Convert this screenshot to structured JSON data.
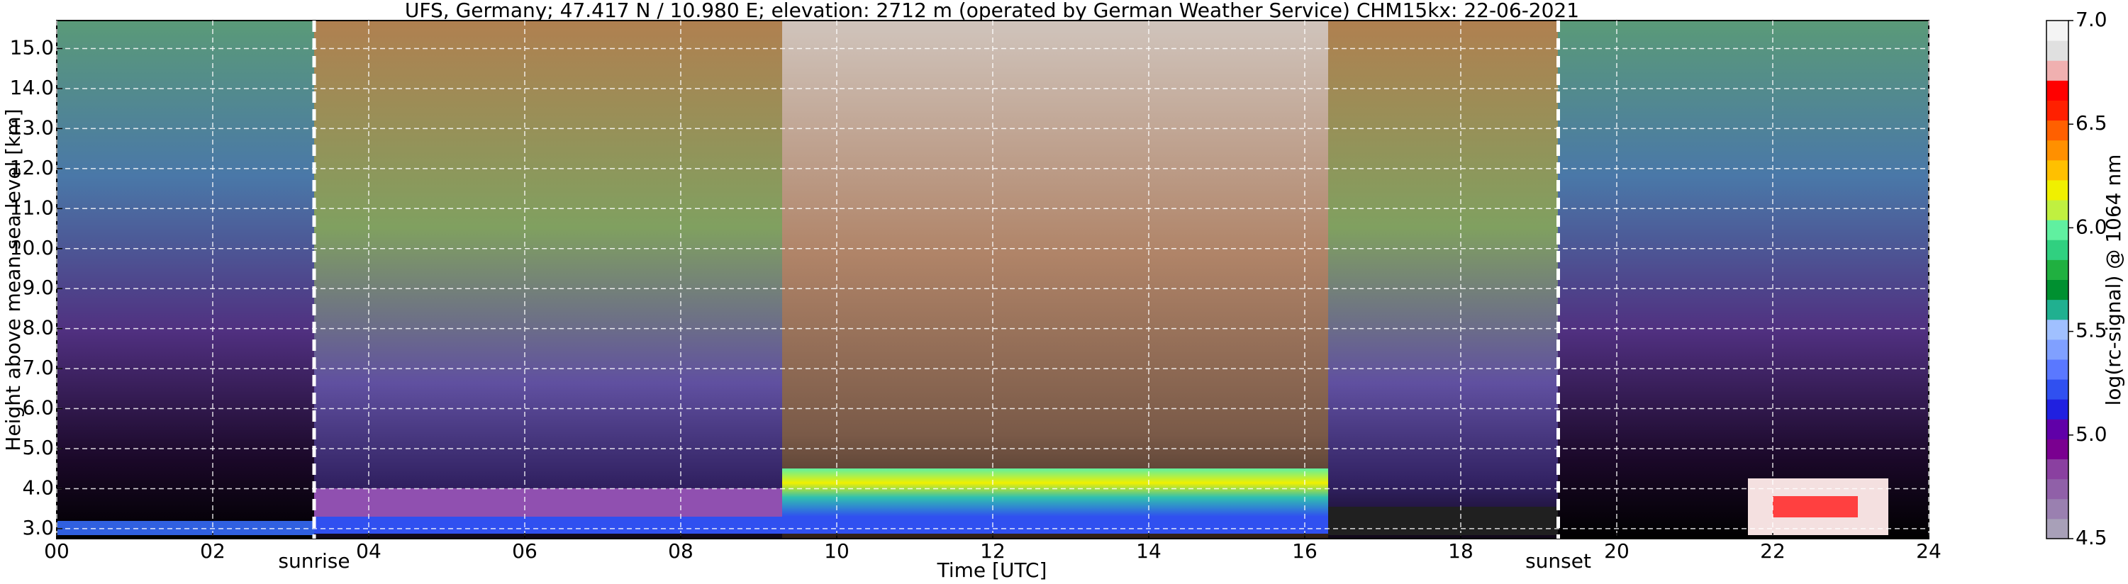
{
  "chart_data": {
    "type": "heatmap",
    "title": "UFS, Germany; 47.417 N / 10.980 E; elevation: 2712 m  (operated by German Weather Service)    CHM15kx: 22-06-2021",
    "xlabel": "Time [UTC]",
    "ylabel": "Height above mean sea level [km]",
    "xlim": [
      0,
      24
    ],
    "xticks": [
      {
        "value": 0,
        "label": "00"
      },
      {
        "value": 2,
        "label": "02"
      },
      {
        "value": 4,
        "label": "04"
      },
      {
        "value": 6,
        "label": "06"
      },
      {
        "value": 8,
        "label": "08"
      },
      {
        "value": 10,
        "label": "10"
      },
      {
        "value": 12,
        "label": "12"
      },
      {
        "value": 14,
        "label": "14"
      },
      {
        "value": 16,
        "label": "16"
      },
      {
        "value": 18,
        "label": "18"
      },
      {
        "value": 20,
        "label": "20"
      },
      {
        "value": 22,
        "label": "22"
      },
      {
        "value": 24,
        "label": "24"
      }
    ],
    "ylim": [
      2.75,
      15.7
    ],
    "yticks": [
      {
        "value": 3,
        "label": "3.0"
      },
      {
        "value": 4,
        "label": "4.0"
      },
      {
        "value": 5,
        "label": "5.0"
      },
      {
        "value": 6,
        "label": "6.0"
      },
      {
        "value": 7,
        "label": "7.0"
      },
      {
        "value": 8,
        "label": "8.0"
      },
      {
        "value": 9,
        "label": "9.0"
      },
      {
        "value": 10,
        "label": "10.0"
      },
      {
        "value": 11,
        "label": "11.0"
      },
      {
        "value": 12,
        "label": "12.0"
      },
      {
        "value": 13,
        "label": "13.0"
      },
      {
        "value": 14,
        "label": "14.0"
      },
      {
        "value": 15,
        "label": "15.0"
      }
    ],
    "grid": true,
    "annotations": [
      {
        "text": "sunrise",
        "x": 3.3
      },
      {
        "text": "sunset",
        "x": 19.25
      }
    ],
    "colorbar": {
      "label": "log(rc-signal) @ 1064 nm",
      "lim": [
        4.5,
        7.0
      ],
      "ticks": [
        4.5,
        {
          "value": 5.0,
          "label": "5.0"
        },
        5.5,
        {
          "value": 6.0,
          "label": "6.0"
        },
        6.5,
        {
          "value": 7.0,
          "label": "7.0"
        }
      ],
      "colors": [
        "#a8a0b8",
        "#9a80b0",
        "#9060a8",
        "#8a40a0",
        "#7a0090",
        "#6000a8",
        "#2020e0",
        "#3050f0",
        "#5a78ff",
        "#80a0ff",
        "#a0c0ff",
        "#20b090",
        "#009030",
        "#20b040",
        "#30d080",
        "#60f0a0",
        "#c0f040",
        "#f0f000",
        "#ffc000",
        "#ff9000",
        "#ff6000",
        "#ff2000",
        "#ff0000",
        "#f0b0b0",
        "#e0e0e0",
        "#f4f4f4"
      ]
    }
  }
}
